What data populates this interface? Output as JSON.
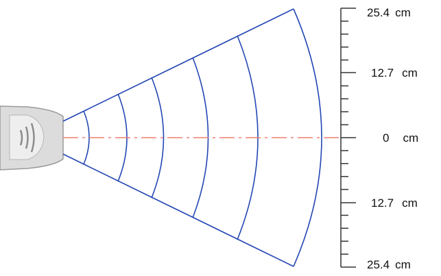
{
  "diagram": {
    "scale_labels": [
      {
        "value": "25.4",
        "unit": "cm"
      },
      {
        "value": "12.7",
        "unit": "cm"
      },
      {
        "value": "0",
        "unit": "cm"
      },
      {
        "value": "12.7",
        "unit": "cm"
      },
      {
        "value": "25.4",
        "unit": "cm"
      }
    ],
    "colors": {
      "beam": "#2346b4",
      "centerline": "#f07e70",
      "ruler": "#333333",
      "scanner_body": "#dcdcdc",
      "scanner_outline": "#9a9a9a"
    },
    "icons": [
      "scanner-icon"
    ]
  }
}
